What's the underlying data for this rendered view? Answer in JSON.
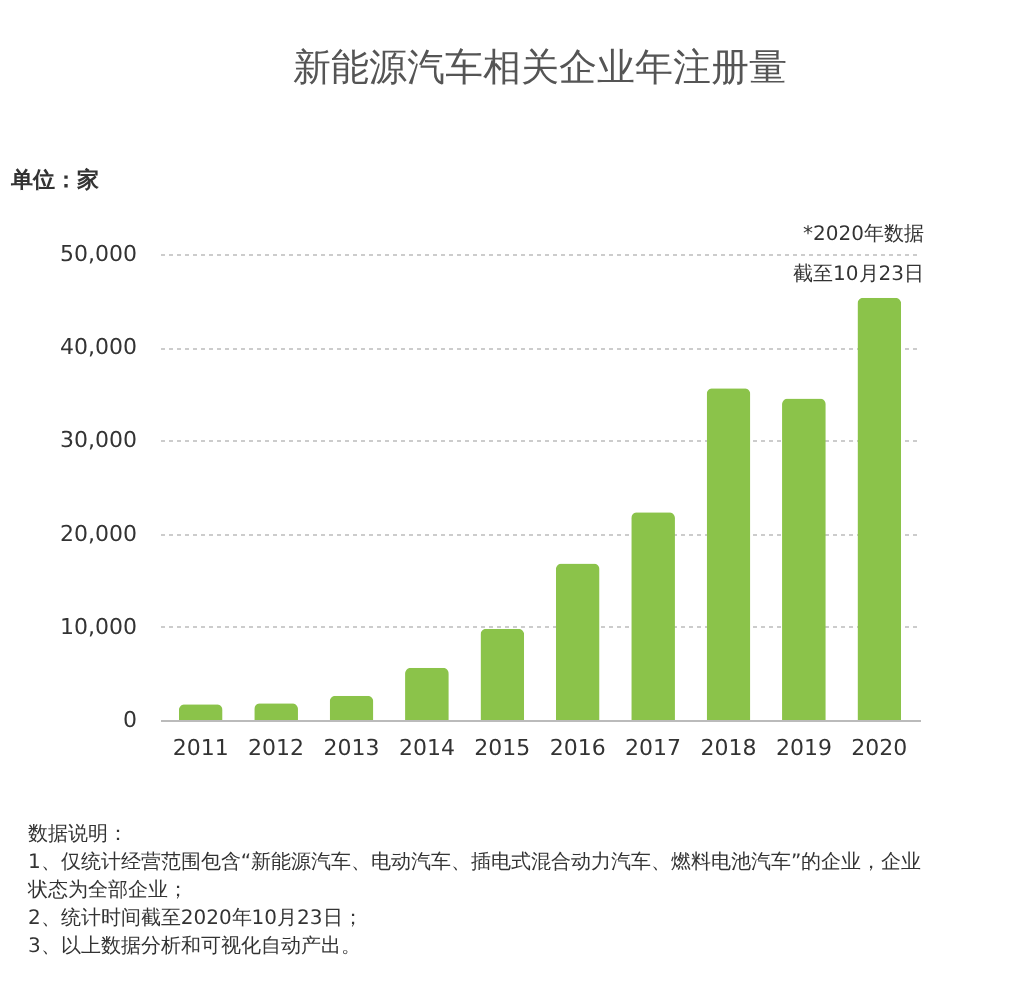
{
  "chart_data": {
    "type": "bar",
    "title": "新能源汽车相关企业年注册量",
    "ylabel": "单位：家",
    "categories": [
      "2011",
      "2012",
      "2013",
      "2014",
      "2015",
      "2016",
      "2017",
      "2018",
      "2019",
      "2020"
    ],
    "values": [
      1700,
      1800,
      2600,
      5600,
      9800,
      16800,
      22300,
      35600,
      34500,
      45300
    ],
    "color": "#8bc34a",
    "ylim": [
      0,
      50000
    ],
    "yticks": [
      0,
      {
        "value": 10000,
        "label": "10,000"
      },
      {
        "value": 20000,
        "label": "20,000"
      },
      {
        "value": 30000,
        "label": "30,000"
      },
      {
        "value": 40000,
        "label": "40,000"
      },
      {
        "value": 50000,
        "label": "50,000"
      }
    ],
    "grid": "y",
    "annotations": [
      "*2020年数据",
      "截至10月23日",
      "数据说明：",
      "1、仅统计经营范围包含“新能源汽车、电动汽车、插电式混合动力汽车、燃料电池汽车”的企业，企业状态为全部企业；",
      "2、统计时间截至2020年10月23日；",
      "3、以上数据分析和可视化自动产出。"
    ]
  }
}
